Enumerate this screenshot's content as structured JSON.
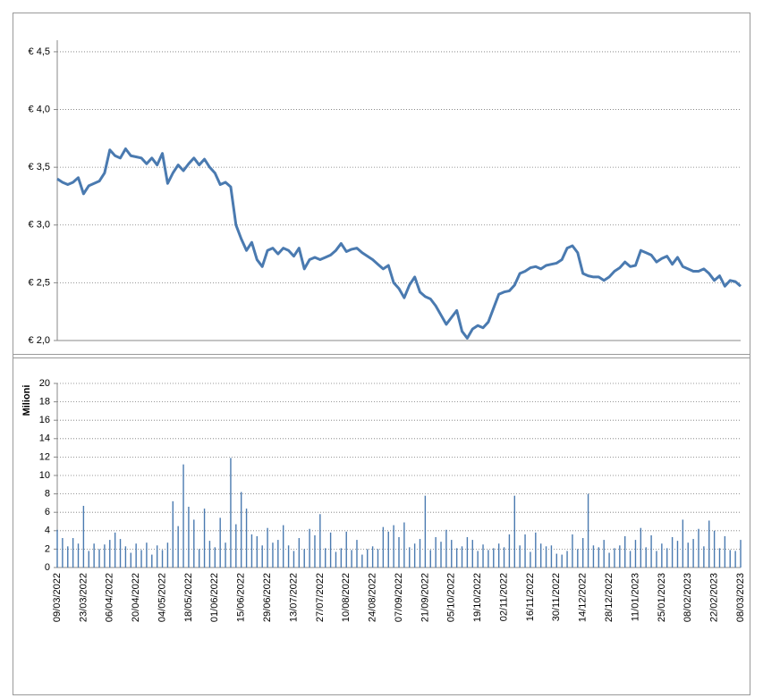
{
  "chart_data": [
    {
      "type": "line",
      "color": "#4a7ab0",
      "grid": true,
      "ylim": [
        2,
        4.6
      ],
      "yticks": [
        {
          "value": 2.0,
          "label": "€ 2,0"
        },
        {
          "value": 2.5,
          "label": "€ 2,5"
        },
        {
          "value": 3.0,
          "label": "€ 3,0"
        },
        {
          "value": 3.5,
          "label": "€ 3,5"
        },
        {
          "value": 4.0,
          "label": "€ 4,0"
        },
        {
          "value": 4.5,
          "label": "€ 4,5"
        }
      ],
      "values": [
        3.4,
        3.37,
        3.35,
        3.37,
        3.41,
        3.27,
        3.34,
        3.36,
        3.38,
        3.45,
        3.65,
        3.6,
        3.58,
        3.66,
        3.6,
        3.59,
        3.58,
        3.53,
        3.58,
        3.52,
        3.62,
        3.36,
        3.45,
        3.52,
        3.47,
        3.53,
        3.58,
        3.52,
        3.57,
        3.5,
        3.45,
        3.35,
        3.37,
        3.33,
        3.0,
        2.88,
        2.78,
        2.85,
        2.7,
        2.64,
        2.78,
        2.8,
        2.75,
        2.8,
        2.78,
        2.73,
        2.8,
        2.62,
        2.7,
        2.72,
        2.7,
        2.72,
        2.74,
        2.78,
        2.84,
        2.77,
        2.79,
        2.8,
        2.76,
        2.73,
        2.7,
        2.66,
        2.62,
        2.65,
        2.5,
        2.45,
        2.37,
        2.48,
        2.55,
        2.42,
        2.38,
        2.36,
        2.3,
        2.22,
        2.14,
        2.2,
        2.26,
        2.08,
        2.02,
        2.1,
        2.13,
        2.11,
        2.16,
        2.28,
        2.4,
        2.42,
        2.43,
        2.48,
        2.58,
        2.6,
        2.63,
        2.64,
        2.62,
        2.65,
        2.66,
        2.67,
        2.7,
        2.8,
        2.82,
        2.76,
        2.58,
        2.56,
        2.55,
        2.55,
        2.52,
        2.55,
        2.6,
        2.63,
        2.68,
        2.64,
        2.65,
        2.78,
        2.76,
        2.74,
        2.68,
        2.71,
        2.73,
        2.66,
        2.72,
        2.64,
        2.62,
        2.6,
        2.6,
        2.62,
        2.58,
        2.52,
        2.56,
        2.47,
        2.52,
        2.51,
        2.47
      ]
    },
    {
      "type": "bar",
      "color": "#4a7ab0",
      "grid": true,
      "y_label": "Milioni",
      "ylim": [
        0,
        20
      ],
      "yticks": [
        0,
        2,
        4,
        6,
        8,
        10,
        12,
        14,
        16,
        18,
        20
      ],
      "categories": [
        "09/03/2022",
        null,
        null,
        null,
        null,
        "23/03/2022",
        null,
        null,
        null,
        null,
        "06/04/2022",
        null,
        null,
        null,
        null,
        "20/04/2022",
        null,
        null,
        null,
        null,
        "04/05/2022",
        null,
        null,
        null,
        null,
        "18/05/2022",
        null,
        null,
        null,
        null,
        "01/06/2022",
        null,
        null,
        null,
        null,
        "15/06/2022",
        null,
        null,
        null,
        null,
        "29/06/2022",
        null,
        null,
        null,
        null,
        "13/07/2022",
        null,
        null,
        null,
        null,
        "27/07/2022",
        null,
        null,
        null,
        null,
        "10/08/2022",
        null,
        null,
        null,
        null,
        "24/08/2022",
        null,
        null,
        null,
        null,
        "07/09/2022",
        null,
        null,
        null,
        null,
        "21/09/2022",
        null,
        null,
        null,
        null,
        "05/10/2022",
        null,
        null,
        null,
        null,
        "19/10/2022",
        null,
        null,
        null,
        null,
        "02/11/2022",
        null,
        null,
        null,
        null,
        "16/11/2022",
        null,
        null,
        null,
        null,
        "30/11/2022",
        null,
        null,
        null,
        null,
        "14/12/2022",
        null,
        null,
        null,
        null,
        "28/12/2022",
        null,
        null,
        null,
        null,
        "11/01/2023",
        null,
        null,
        null,
        null,
        "25/01/2023",
        null,
        null,
        null,
        null,
        "08/02/2023",
        null,
        null,
        null,
        null,
        "22/02/2023",
        null,
        null,
        null,
        null,
        "08/03/2023"
      ],
      "values": [
        4.1,
        3.2,
        2.3,
        3.2,
        2.6,
        6.7,
        1.8,
        2.6,
        2.0,
        2.5,
        3.0,
        3.8,
        3.1,
        2.3,
        1.6,
        2.6,
        1.9,
        2.7,
        1.4,
        2.4,
        1.9,
        2.7,
        7.2,
        4.5,
        11.2,
        6.6,
        5.2,
        2.0,
        6.4,
        2.9,
        2.2,
        5.4,
        2.7,
        11.9,
        4.7,
        8.2,
        6.4,
        3.6,
        3.4,
        2.4,
        4.3,
        2.7,
        3.0,
        4.6,
        2.4,
        1.8,
        3.2,
        2.0,
        4.2,
        3.5,
        5.8,
        2.1,
        3.8,
        1.7,
        2.1,
        3.9,
        1.9,
        3.0,
        1.4,
        2.0,
        2.3,
        2.0,
        4.4,
        3.9,
        4.6,
        3.3,
        4.9,
        2.2,
        2.6,
        3.1,
        7.8,
        1.9,
        3.3,
        2.8,
        4.1,
        3.0,
        2.1,
        2.3,
        3.3,
        3.0,
        1.8,
        2.5,
        1.9,
        2.1,
        2.6,
        2.2,
        3.6,
        7.8,
        2.4,
        3.6,
        1.7,
        3.8,
        2.6,
        2.3,
        2.4,
        1.5,
        1.4,
        1.8,
        3.6,
        2.0,
        3.2,
        8.0,
        2.4,
        2.2,
        3.0,
        1.6,
        2.1,
        2.4,
        3.4,
        1.8,
        3.0,
        4.3,
        2.2,
        3.5,
        1.8,
        2.6,
        2.1,
        3.3,
        2.9,
        5.2,
        2.7,
        3.1,
        4.2,
        2.3,
        5.1,
        4.0,
        2.1,
        3.4,
        1.9,
        1.8,
        3.0
      ]
    }
  ]
}
